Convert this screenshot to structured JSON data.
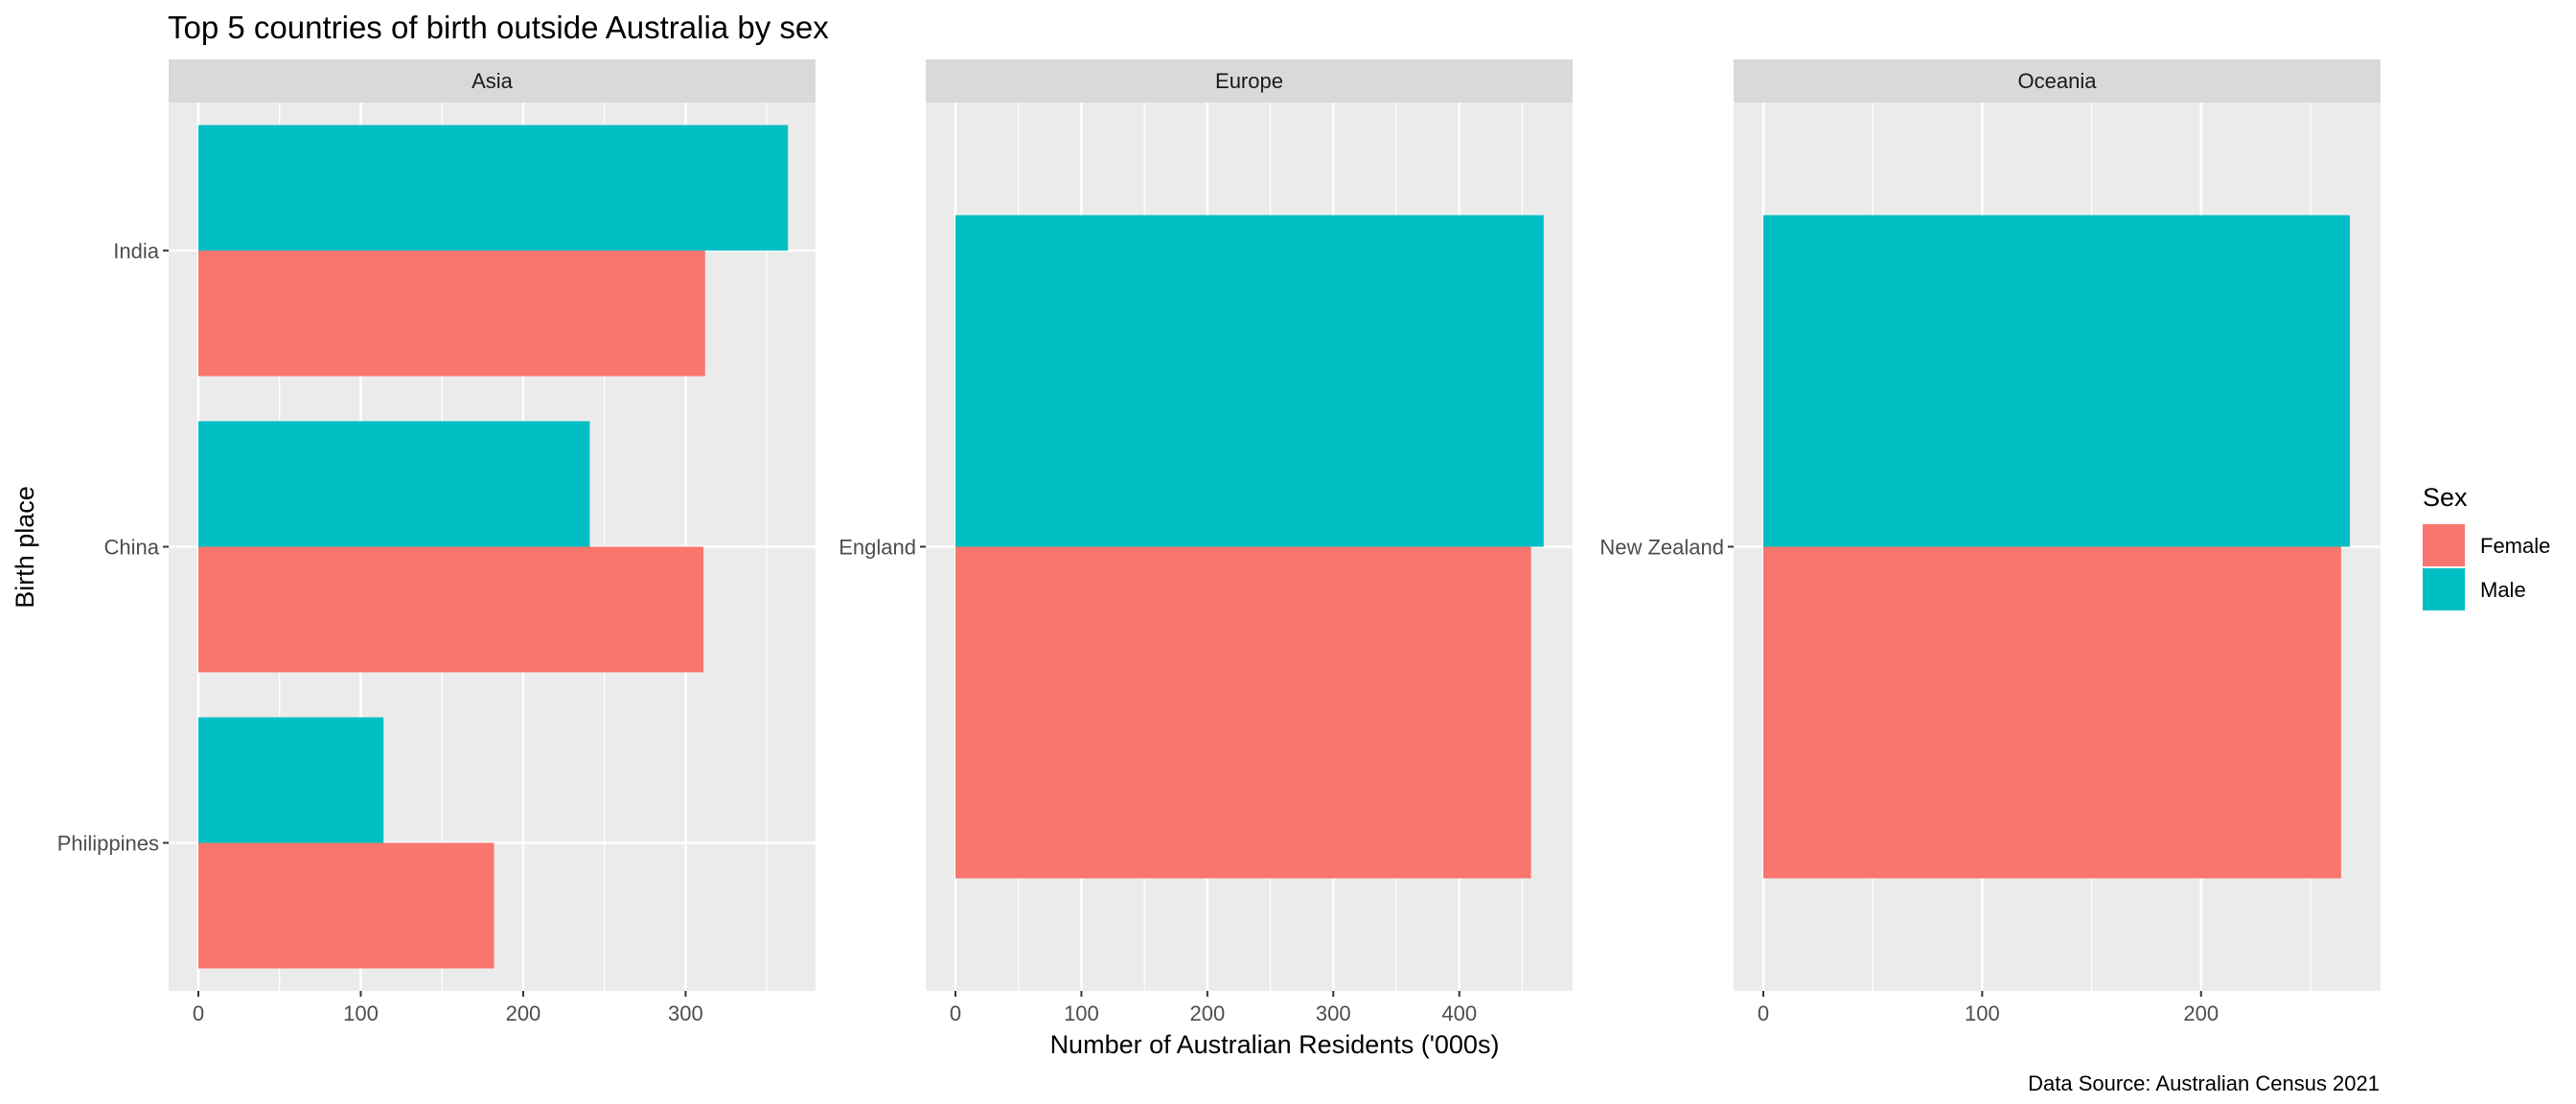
{
  "chart_data": {
    "type": "bar",
    "title": "Top 5 countries of birth outside Australia by sex",
    "xlabel": "Number of Australian Residents ('000s)",
    "ylabel": "Birth place",
    "caption": "Data Source: Australian Census 2021",
    "orientation": "horizontal",
    "grid": true,
    "legend": {
      "title": "Sex",
      "placement": "right",
      "entries": [
        {
          "name": "Female",
          "color": "#F8766D"
        },
        {
          "name": "Male",
          "color": "#00BFC4"
        }
      ]
    },
    "panels": [
      {
        "name": "Asia",
        "xlim": [
          0,
          380
        ],
        "xticks": [
          0,
          100,
          200,
          300
        ],
        "xticklabels": [
          "0",
          "100",
          "200",
          "300"
        ],
        "categories": [
          "India",
          "China",
          "Philippines"
        ],
        "series": [
          {
            "name": "Female",
            "values": [
              312,
              311,
              182
            ]
          },
          {
            "name": "Male",
            "values": [
              363,
              241,
              114
            ]
          }
        ]
      },
      {
        "name": "Europe",
        "xlim": [
          0,
          490
        ],
        "xticks": [
          0,
          100,
          200,
          300,
          400
        ],
        "xticklabels": [
          "0",
          "100",
          "200",
          "300",
          "400"
        ],
        "categories": [
          "England"
        ],
        "series": [
          {
            "name": "Female",
            "values": [
              457
            ]
          },
          {
            "name": "Male",
            "values": [
              467
            ]
          }
        ]
      },
      {
        "name": "Oceania",
        "xlim": [
          0,
          282
        ],
        "xticks": [
          0,
          100,
          200
        ],
        "xticklabels": [
          "0",
          "100",
          "200"
        ],
        "categories": [
          "New Zealand"
        ],
        "series": [
          {
            "name": "Female",
            "values": [
              264
            ]
          },
          {
            "name": "Male",
            "values": [
              268
            ]
          }
        ]
      }
    ]
  }
}
